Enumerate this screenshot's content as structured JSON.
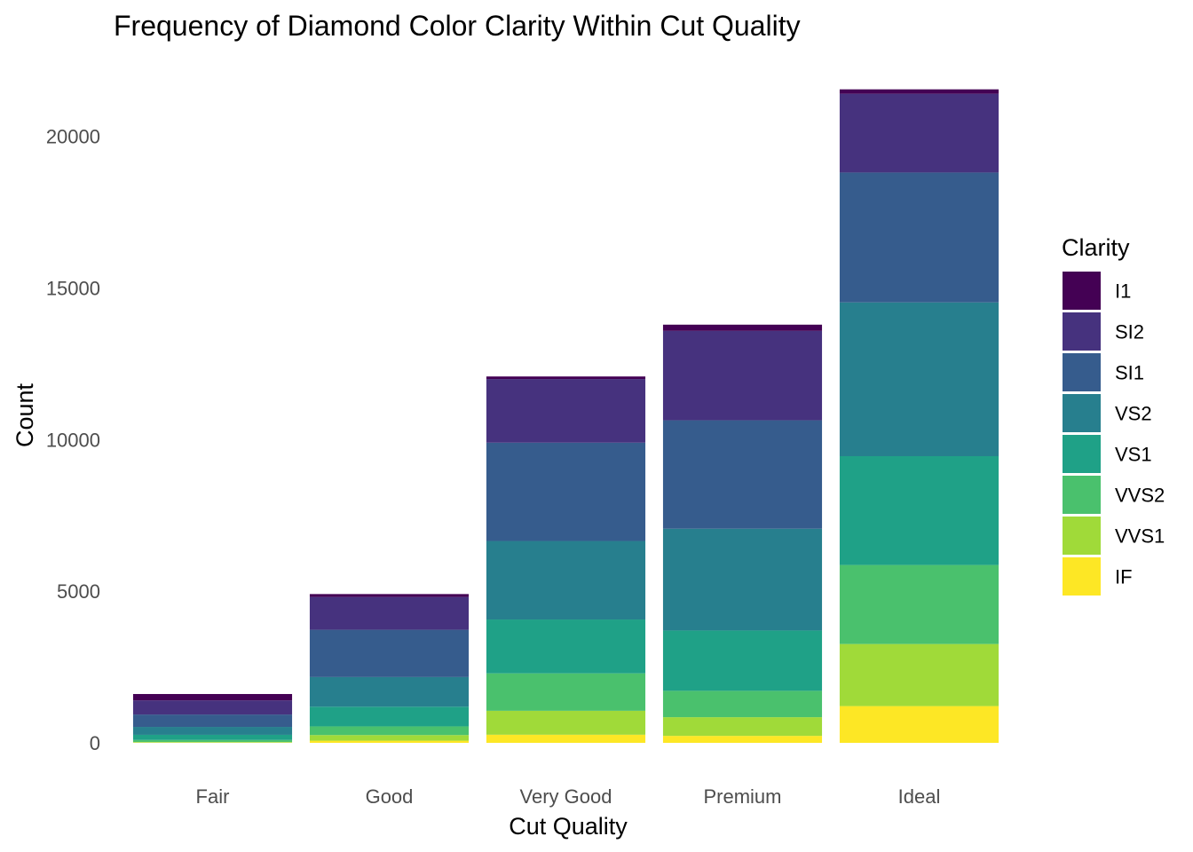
{
  "chart_data": {
    "type": "bar",
    "stacked": true,
    "title": "Frequency of Diamond Color Clarity Within Cut Quality",
    "xlabel": "Cut Quality",
    "ylabel": "Count",
    "ylim": [
      0,
      21600
    ],
    "yticks": [
      0,
      5000,
      10000,
      15000,
      20000
    ],
    "grid": false,
    "legend_position": "right",
    "legend_title": "Clarity",
    "categories": [
      "Fair",
      "Good",
      "Very Good",
      "Premium",
      "Ideal"
    ],
    "series": [
      {
        "name": "IF",
        "color": "#FDE725",
        "values": [
          9,
          71,
          268,
          230,
          1212
        ]
      },
      {
        "name": "VVS1",
        "color": "#A0DA39",
        "values": [
          17,
          186,
          789,
          616,
          2047
        ]
      },
      {
        "name": "VVS2",
        "color": "#4AC16D",
        "values": [
          69,
          286,
          1235,
          870,
          2606
        ]
      },
      {
        "name": "VS1",
        "color": "#1FA187",
        "values": [
          170,
          648,
          1775,
          1989,
          3589
        ]
      },
      {
        "name": "VS2",
        "color": "#277F8E",
        "values": [
          261,
          978,
          2591,
          3357,
          5071
        ]
      },
      {
        "name": "SI1",
        "color": "#365C8D",
        "values": [
          408,
          1560,
          3240,
          3575,
          4282
        ]
      },
      {
        "name": "SI2",
        "color": "#46327E",
        "values": [
          466,
          1081,
          2100,
          2949,
          2598
        ]
      },
      {
        "name": "I1",
        "color": "#440154",
        "values": [
          210,
          96,
          84,
          205,
          146
        ]
      }
    ],
    "legend_order": [
      "I1",
      "SI2",
      "SI1",
      "VS2",
      "VS1",
      "VVS2",
      "VVS1",
      "IF"
    ]
  }
}
